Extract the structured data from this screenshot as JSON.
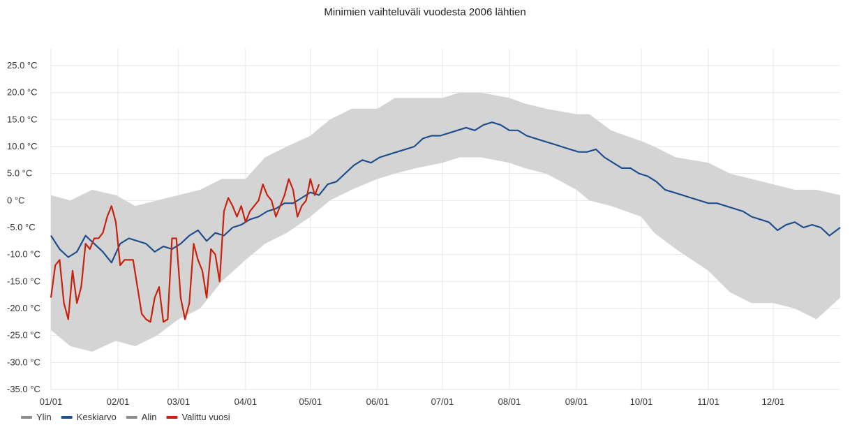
{
  "chart_data": {
    "type": "area",
    "title": "Minimien vaihteluväli vuodesta 2006 lähtien",
    "xlabel": "",
    "ylabel": "",
    "unit": "°C",
    "ylim": [
      -35,
      25
    ],
    "y_ticks": [
      25,
      20,
      15,
      10,
      5,
      0,
      -5,
      -10,
      -15,
      -20,
      -25,
      -30,
      -35
    ],
    "y_tick_labels": [
      "25.0 °C",
      "20.0 °C",
      "15.0 °C",
      "10.0 °C",
      "5.0 °C",
      "0 °C",
      "-5.0 °C",
      "-10.0 °C",
      "-15.0 °C",
      "-20.0 °C",
      "-25.0 °C",
      "-30.0 °C",
      "-35.0 °C"
    ],
    "x_ticks_day": [
      1,
      32,
      60,
      91,
      121,
      152,
      182,
      213,
      244,
      274,
      305,
      335
    ],
    "x_tick_labels": [
      "01/01",
      "02/01",
      "03/01",
      "04/01",
      "05/01",
      "06/01",
      "07/01",
      "08/01",
      "09/01",
      "10/01",
      "11/01",
      "12/01"
    ],
    "x_range_days": [
      1,
      366
    ],
    "grid": true,
    "legend_position": "bottom-left",
    "legend": [
      {
        "name": "Ylin",
        "color": "#8c8c8c"
      },
      {
        "name": "Keskiarvo",
        "color": "#1f4e8c"
      },
      {
        "name": "Alin",
        "color": "#8c8c8c"
      },
      {
        "name": "Valittu vuosi",
        "color": "#c8220f"
      }
    ],
    "series": [
      {
        "name": "Ylin",
        "color": "#d4d4d4",
        "points": [
          [
            1,
            1
          ],
          [
            10,
            0
          ],
          [
            20,
            2
          ],
          [
            31,
            1
          ],
          [
            40,
            -1
          ],
          [
            50,
            0
          ],
          [
            60,
            1
          ],
          [
            70,
            2
          ],
          [
            80,
            4
          ],
          [
            91,
            4
          ],
          [
            100,
            8
          ],
          [
            110,
            10
          ],
          [
            121,
            12
          ],
          [
            130,
            15
          ],
          [
            140,
            17
          ],
          [
            152,
            17
          ],
          [
            160,
            19
          ],
          [
            170,
            19
          ],
          [
            182,
            19
          ],
          [
            190,
            20
          ],
          [
            200,
            20
          ],
          [
            213,
            19
          ],
          [
            220,
            18
          ],
          [
            230,
            17
          ],
          [
            244,
            16
          ],
          [
            250,
            16
          ],
          [
            260,
            13
          ],
          [
            274,
            11
          ],
          [
            280,
            10
          ],
          [
            290,
            8
          ],
          [
            305,
            7
          ],
          [
            315,
            5
          ],
          [
            325,
            4
          ],
          [
            335,
            3
          ],
          [
            345,
            2
          ],
          [
            355,
            2
          ],
          [
            366,
            1
          ]
        ]
      },
      {
        "name": "Alin",
        "color": "#d4d4d4",
        "points": [
          [
            1,
            -24
          ],
          [
            10,
            -27
          ],
          [
            20,
            -28
          ],
          [
            31,
            -26
          ],
          [
            40,
            -27
          ],
          [
            50,
            -25
          ],
          [
            60,
            -22
          ],
          [
            70,
            -20
          ],
          [
            80,
            -15
          ],
          [
            91,
            -11
          ],
          [
            100,
            -8
          ],
          [
            110,
            -6
          ],
          [
            121,
            -3
          ],
          [
            130,
            0
          ],
          [
            140,
            2
          ],
          [
            152,
            4
          ],
          [
            160,
            5
          ],
          [
            170,
            6
          ],
          [
            182,
            7
          ],
          [
            190,
            8
          ],
          [
            200,
            8
          ],
          [
            213,
            7
          ],
          [
            220,
            6
          ],
          [
            230,
            5
          ],
          [
            244,
            2
          ],
          [
            250,
            0
          ],
          [
            260,
            -1
          ],
          [
            274,
            -3
          ],
          [
            280,
            -6
          ],
          [
            290,
            -9
          ],
          [
            305,
            -13
          ],
          [
            315,
            -17
          ],
          [
            325,
            -19
          ],
          [
            335,
            -19
          ],
          [
            345,
            -20
          ],
          [
            355,
            -22
          ],
          [
            366,
            -18
          ]
        ]
      },
      {
        "name": "Keskiarvo",
        "color": "#1f4e8c",
        "points": [
          [
            1,
            -6.5
          ],
          [
            5,
            -9
          ],
          [
            9,
            -10.5
          ],
          [
            13,
            -9.5
          ],
          [
            17,
            -6.5
          ],
          [
            21,
            -8
          ],
          [
            25,
            -9.5
          ],
          [
            29,
            -11.5
          ],
          [
            33,
            -8
          ],
          [
            37,
            -7
          ],
          [
            41,
            -7.5
          ],
          [
            45,
            -8
          ],
          [
            49,
            -9.5
          ],
          [
            53,
            -8.5
          ],
          [
            57,
            -9
          ],
          [
            61,
            -8
          ],
          [
            65,
            -6.5
          ],
          [
            69,
            -5.5
          ],
          [
            73,
            -7.5
          ],
          [
            77,
            -6
          ],
          [
            81,
            -6.5
          ],
          [
            85,
            -5
          ],
          [
            89,
            -4.5
          ],
          [
            93,
            -3.5
          ],
          [
            97,
            -3
          ],
          [
            101,
            -2
          ],
          [
            105,
            -1.5
          ],
          [
            109,
            -0.5
          ],
          [
            113,
            -0.5
          ],
          [
            117,
            0.5
          ],
          [
            121,
            1.5
          ],
          [
            125,
            1
          ],
          [
            129,
            3
          ],
          [
            133,
            3.5
          ],
          [
            137,
            5
          ],
          [
            141,
            6.5
          ],
          [
            145,
            7.5
          ],
          [
            149,
            7
          ],
          [
            153,
            8
          ],
          [
            157,
            8.5
          ],
          [
            161,
            9
          ],
          [
            165,
            9.5
          ],
          [
            169,
            10
          ],
          [
            173,
            11.5
          ],
          [
            177,
            12
          ],
          [
            181,
            12
          ],
          [
            185,
            12.5
          ],
          [
            189,
            13
          ],
          [
            193,
            13.5
          ],
          [
            197,
            13
          ],
          [
            201,
            14
          ],
          [
            205,
            14.5
          ],
          [
            209,
            14
          ],
          [
            213,
            13
          ],
          [
            217,
            13
          ],
          [
            221,
            12
          ],
          [
            225,
            11.5
          ],
          [
            229,
            11
          ],
          [
            233,
            10.5
          ],
          [
            237,
            10
          ],
          [
            241,
            9.5
          ],
          [
            245,
            9
          ],
          [
            249,
            9
          ],
          [
            253,
            9.5
          ],
          [
            257,
            8
          ],
          [
            261,
            7
          ],
          [
            265,
            6
          ],
          [
            269,
            6
          ],
          [
            273,
            5
          ],
          [
            277,
            4.5
          ],
          [
            281,
            3.5
          ],
          [
            285,
            2
          ],
          [
            289,
            1.5
          ],
          [
            293,
            1
          ],
          [
            297,
            0.5
          ],
          [
            301,
            0
          ],
          [
            305,
            -0.5
          ],
          [
            309,
            -0.5
          ],
          [
            313,
            -1
          ],
          [
            317,
            -1.5
          ],
          [
            321,
            -2
          ],
          [
            325,
            -3
          ],
          [
            329,
            -3.5
          ],
          [
            333,
            -4
          ],
          [
            337,
            -5.5
          ],
          [
            341,
            -4.5
          ],
          [
            345,
            -4
          ],
          [
            349,
            -5
          ],
          [
            353,
            -4.5
          ],
          [
            357,
            -5
          ],
          [
            361,
            -6.5
          ],
          [
            366,
            -5
          ]
        ]
      },
      {
        "name": "Valittu vuosi",
        "color": "#c8220f",
        "points": [
          [
            1,
            -18
          ],
          [
            3,
            -12
          ],
          [
            5,
            -11
          ],
          [
            7,
            -19
          ],
          [
            9,
            -22
          ],
          [
            11,
            -13
          ],
          [
            13,
            -19
          ],
          [
            15,
            -16
          ],
          [
            17,
            -8
          ],
          [
            19,
            -9
          ],
          [
            21,
            -7
          ],
          [
            23,
            -7
          ],
          [
            25,
            -6
          ],
          [
            27,
            -3
          ],
          [
            29,
            -1
          ],
          [
            31,
            -4
          ],
          [
            33,
            -12
          ],
          [
            35,
            -11
          ],
          [
            37,
            -11
          ],
          [
            39,
            -11
          ],
          [
            41,
            -16
          ],
          [
            43,
            -21
          ],
          [
            45,
            -22
          ],
          [
            47,
            -22.5
          ],
          [
            49,
            -18
          ],
          [
            51,
            -16
          ],
          [
            53,
            -22.5
          ],
          [
            55,
            -22
          ],
          [
            57,
            -7
          ],
          [
            59,
            -7
          ],
          [
            61,
            -18
          ],
          [
            63,
            -22
          ],
          [
            65,
            -19
          ],
          [
            67,
            -8
          ],
          [
            69,
            -11
          ],
          [
            71,
            -13
          ],
          [
            73,
            -18
          ],
          [
            75,
            -9
          ],
          [
            77,
            -10
          ],
          [
            79,
            -15
          ],
          [
            81,
            -2
          ],
          [
            83,
            0.5
          ],
          [
            85,
            -1
          ],
          [
            87,
            -3
          ],
          [
            89,
            -1
          ],
          [
            91,
            -4
          ],
          [
            93,
            -2
          ],
          [
            95,
            -1
          ],
          [
            97,
            0
          ],
          [
            99,
            3
          ],
          [
            101,
            1
          ],
          [
            103,
            0
          ],
          [
            105,
            -3
          ],
          [
            107,
            -1
          ],
          [
            109,
            1
          ],
          [
            111,
            4
          ],
          [
            113,
            2
          ],
          [
            115,
            -3
          ],
          [
            117,
            -1
          ],
          [
            119,
            0
          ],
          [
            121,
            4
          ],
          [
            123,
            1
          ],
          [
            125,
            3
          ]
        ]
      }
    ]
  }
}
